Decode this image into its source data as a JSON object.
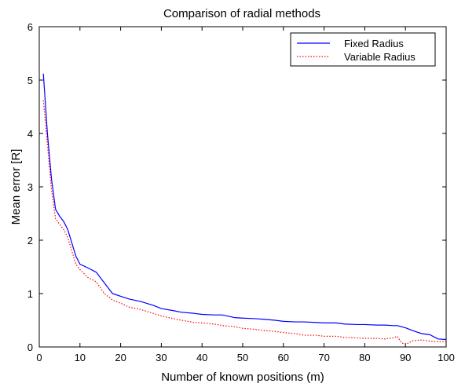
{
  "chart_data": {
    "type": "line",
    "title": "Comparison of radial methods",
    "xlabel": "Number of known positions (m)",
    "ylabel": "Mean error [R]",
    "xlim": [
      0,
      100
    ],
    "ylim": [
      0,
      6
    ],
    "xticks": [
      "0",
      "10",
      "20",
      "30",
      "40",
      "50",
      "60",
      "70",
      "80",
      "90",
      "100"
    ],
    "yticks": [
      "0",
      "1",
      "2",
      "3",
      "4",
      "5",
      "6"
    ],
    "grid": false,
    "legend_position": "top-right",
    "series": [
      {
        "name": "Fixed Radius",
        "color": "#0000ff",
        "style": "solid",
        "x": [
          1,
          2,
          3,
          4,
          5,
          6,
          7,
          8,
          9,
          10,
          12,
          14,
          16,
          18,
          20,
          22,
          25,
          28,
          30,
          33,
          35,
          38,
          40,
          43,
          45,
          48,
          50,
          53,
          55,
          58,
          60,
          63,
          65,
          68,
          70,
          73,
          75,
          78,
          80,
          83,
          85,
          87,
          88,
          90,
          92,
          94,
          96,
          98,
          100
        ],
        "y": [
          5.12,
          4.0,
          3.15,
          2.58,
          2.45,
          2.35,
          2.2,
          1.95,
          1.7,
          1.55,
          1.48,
          1.4,
          1.2,
          1.0,
          0.95,
          0.9,
          0.85,
          0.78,
          0.72,
          0.68,
          0.65,
          0.63,
          0.61,
          0.6,
          0.6,
          0.55,
          0.54,
          0.53,
          0.52,
          0.5,
          0.48,
          0.47,
          0.47,
          0.46,
          0.45,
          0.45,
          0.43,
          0.42,
          0.42,
          0.41,
          0.41,
          0.4,
          0.4,
          0.36,
          0.3,
          0.25,
          0.23,
          0.15,
          0.14
        ]
      },
      {
        "name": "Variable Radius",
        "color": "#ff0000",
        "style": "dotted",
        "x": [
          1,
          2,
          3,
          4,
          5,
          6,
          7,
          8,
          9,
          10,
          12,
          14,
          16,
          18,
          20,
          22,
          25,
          28,
          30,
          33,
          35,
          38,
          40,
          43,
          45,
          48,
          50,
          53,
          55,
          58,
          60,
          63,
          65,
          68,
          70,
          73,
          75,
          78,
          80,
          83,
          85,
          87,
          88,
          89,
          90,
          92,
          94,
          96,
          98,
          100
        ],
        "y": [
          4.62,
          3.8,
          2.95,
          2.4,
          2.3,
          2.2,
          2.05,
          1.8,
          1.55,
          1.45,
          1.3,
          1.22,
          1.0,
          0.88,
          0.82,
          0.75,
          0.7,
          0.63,
          0.58,
          0.53,
          0.5,
          0.46,
          0.45,
          0.43,
          0.4,
          0.38,
          0.35,
          0.33,
          0.31,
          0.29,
          0.27,
          0.25,
          0.22,
          0.22,
          0.2,
          0.2,
          0.18,
          0.17,
          0.16,
          0.16,
          0.15,
          0.17,
          0.2,
          0.08,
          0.05,
          0.12,
          0.13,
          0.11,
          0.1,
          0.1
        ]
      }
    ]
  }
}
